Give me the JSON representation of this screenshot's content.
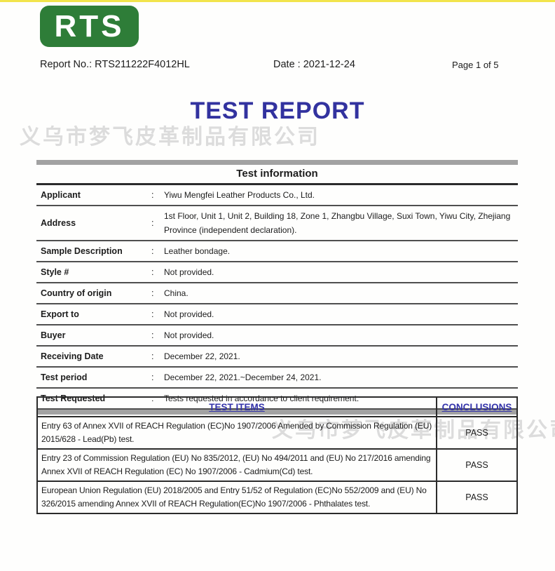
{
  "colors": {
    "logo_green": "#2e7d38",
    "title_blue": "#32329f",
    "table_header_blue": "#3333aa",
    "watermark_gray": "#dcdcdc",
    "top_line_yellow": "#f2e44c",
    "bar_gray": "#a2a2a2"
  },
  "logo": {
    "text": "RTS"
  },
  "header": {
    "report_no": "Report No.: RTS211222F4012HL",
    "date": "Date : 2021-12-24",
    "page": "Page 1 of 5"
  },
  "title": "TEST REPORT",
  "watermark": {
    "text": "义乌市梦飞皮革制品有限公司"
  },
  "info_table": {
    "title": "Test information",
    "separator": ":",
    "rows": [
      {
        "label": "Applicant",
        "value": "Yiwu Mengfei Leather Products Co., Ltd."
      },
      {
        "label": "Address",
        "value": "1st Floor, Unit 1, Unit 2, Building 18, Zone 1, Zhangbu Village, Suxi Town, Yiwu City, Zhejiang Province (independent declaration)."
      },
      {
        "label": "Sample Description",
        "value": "Leather bondage."
      },
      {
        "label": "Style #",
        "value": "Not provided."
      },
      {
        "label": "Country of origin",
        "value": "China."
      },
      {
        "label": "Export to",
        "value": "Not provided."
      },
      {
        "label": "Buyer",
        "value": "Not provided."
      },
      {
        "label": "Receiving Date",
        "value": "December 22, 2021."
      },
      {
        "label": "Test period",
        "value": "December 22, 2021.~December 24, 2021."
      },
      {
        "label": "Test Requested",
        "value": "Tests requested in accordance to client requirement."
      }
    ]
  },
  "results_table": {
    "col_items": "TEST ITEMS",
    "col_conclusions": "CONCLUSIONS",
    "rows": [
      {
        "item": "Entry 63 of Annex XVII of REACH Regulation (EC)No 1907/2006 Amended by Commission Regulation (EU) 2015/628 - Lead(Pb) test.",
        "conclusion": "PASS"
      },
      {
        "item": "Entry 23 of Commission Regulation (EU) No 835/2012, (EU) No 494/2011 and (EU) No 217/2016 amending Annex XVII of REACH Regulation (EC) No 1907/2006 - Cadmium(Cd) test.",
        "conclusion": "PASS"
      },
      {
        "item": "European Union Regulation (EU) 2018/2005 and Entry 51/52 of Regulation (EC)No 552/2009 and (EU) No 326/2015 amending Annex XVII of REACH Regulation(EC)No 1907/2006 - Phthalates test.",
        "conclusion": "PASS"
      }
    ]
  }
}
